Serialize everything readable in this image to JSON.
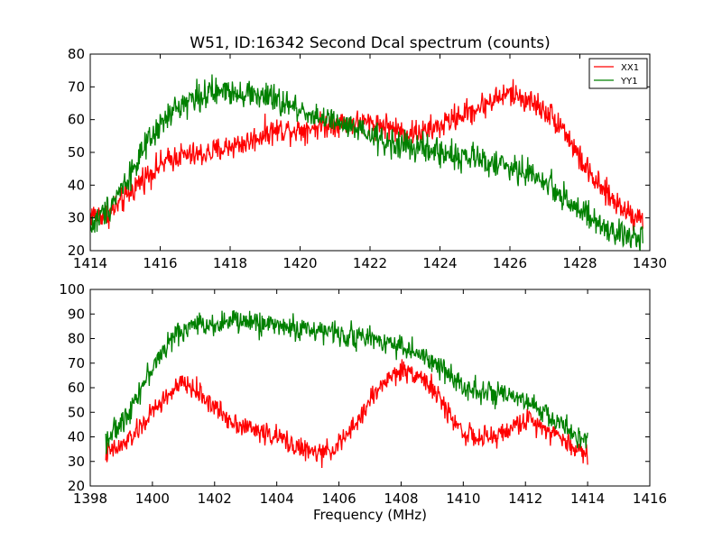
{
  "figure": {
    "title": "W51, ID:16342 Second Dcal spectrum (counts)"
  },
  "colors": {
    "XX1": "#ff0000",
    "YY1": "#008000"
  },
  "chart_data": [
    {
      "type": "line",
      "title": "W51, ID:16342 Second Dcal spectrum (counts)",
      "xlabel": "",
      "ylabel": "",
      "xlim": [
        1414,
        1430
      ],
      "ylim": [
        20,
        80
      ],
      "xticks": [
        1414,
        1416,
        1418,
        1420,
        1422,
        1424,
        1426,
        1428,
        1430
      ],
      "yticks": [
        20,
        30,
        40,
        50,
        60,
        70,
        80
      ],
      "legend": {
        "placement": "top-right",
        "entries": [
          "XX1",
          "YY1"
        ]
      },
      "grid": false,
      "series": [
        {
          "name": "XX1",
          "color": "#ff0000",
          "noise": 2.0,
          "x": [
            1414.0,
            1414.5,
            1415.0,
            1415.5,
            1416.0,
            1416.5,
            1417.0,
            1417.5,
            1418.0,
            1418.5,
            1419.0,
            1419.5,
            1420.0,
            1420.5,
            1421.0,
            1421.5,
            1422.0,
            1422.5,
            1423.0,
            1423.5,
            1424.0,
            1424.5,
            1425.0,
            1425.5,
            1426.0,
            1426.5,
            1427.0,
            1427.5,
            1428.0,
            1428.5,
            1429.0,
            1429.5,
            1429.8
          ],
          "y": [
            31,
            31,
            36,
            42,
            46,
            49,
            49,
            50,
            52,
            53,
            56,
            57,
            57,
            58,
            59,
            59,
            59,
            58,
            56,
            56,
            58,
            61,
            63,
            66,
            68,
            66,
            63,
            58,
            48,
            40,
            35,
            31,
            30
          ]
        },
        {
          "name": "YY1",
          "color": "#008000",
          "noise": 2.2,
          "x": [
            1414.0,
            1414.5,
            1415.0,
            1415.5,
            1416.0,
            1416.5,
            1417.0,
            1417.5,
            1418.0,
            1418.5,
            1419.0,
            1419.5,
            1420.0,
            1420.5,
            1421.0,
            1421.5,
            1422.0,
            1422.5,
            1423.0,
            1423.5,
            1424.0,
            1424.5,
            1425.0,
            1425.5,
            1426.0,
            1426.5,
            1427.0,
            1427.5,
            1428.0,
            1428.5,
            1429.0,
            1429.5,
            1429.8
          ],
          "y": [
            27,
            33,
            41,
            50,
            58,
            64,
            67,
            68,
            69,
            68,
            67,
            65,
            63,
            61,
            59,
            57,
            55,
            53,
            52,
            51,
            50,
            49,
            48,
            47,
            45,
            44,
            41,
            37,
            32,
            28,
            25,
            24,
            25
          ]
        }
      ]
    },
    {
      "type": "line",
      "title": "",
      "xlabel": "Frequency (MHz)",
      "ylabel": "",
      "xlim": [
        1398,
        1416
      ],
      "ylim": [
        20,
        100
      ],
      "xticks": [
        1398,
        1400,
        1402,
        1404,
        1406,
        1408,
        1410,
        1412,
        1414,
        1416
      ],
      "yticks": [
        20,
        30,
        40,
        50,
        60,
        70,
        80,
        90,
        100
      ],
      "grid": false,
      "series": [
        {
          "name": "XX1",
          "color": "#ff0000",
          "noise": 2.2,
          "x": [
            1398.5,
            1399.0,
            1399.5,
            1400.0,
            1400.5,
            1401.0,
            1401.5,
            1402.0,
            1402.5,
            1403.0,
            1403.5,
            1404.0,
            1404.5,
            1405.0,
            1405.5,
            1406.0,
            1406.5,
            1407.0,
            1407.5,
            1408.0,
            1408.5,
            1409.0,
            1409.5,
            1410.0,
            1410.5,
            1411.0,
            1411.5,
            1412.0,
            1412.5,
            1413.0,
            1413.5,
            1414.0
          ],
          "y": [
            33,
            36,
            42,
            50,
            57,
            62,
            58,
            52,
            47,
            44,
            42,
            40,
            37,
            34,
            33,
            37,
            44,
            55,
            63,
            67,
            66,
            60,
            50,
            42,
            39,
            40,
            43,
            47,
            45,
            41,
            36,
            33
          ]
        },
        {
          "name": "YY1",
          "color": "#008000",
          "noise": 2.4,
          "x": [
            1398.5,
            1399.0,
            1399.5,
            1400.0,
            1400.5,
            1401.0,
            1401.5,
            1402.0,
            1402.5,
            1403.0,
            1403.5,
            1404.0,
            1404.5,
            1405.0,
            1405.5,
            1406.0,
            1406.5,
            1407.0,
            1407.5,
            1408.0,
            1408.5,
            1409.0,
            1409.5,
            1410.0,
            1410.5,
            1411.0,
            1411.5,
            1412.0,
            1412.5,
            1413.0,
            1413.5,
            1414.0
          ],
          "y": [
            39,
            45,
            57,
            68,
            78,
            84,
            86,
            86,
            87,
            87,
            86,
            86,
            84,
            84,
            83,
            82,
            81,
            80,
            79,
            77,
            74,
            70,
            66,
            61,
            59,
            57,
            56,
            54,
            51,
            46,
            42,
            38
          ]
        }
      ]
    }
  ]
}
